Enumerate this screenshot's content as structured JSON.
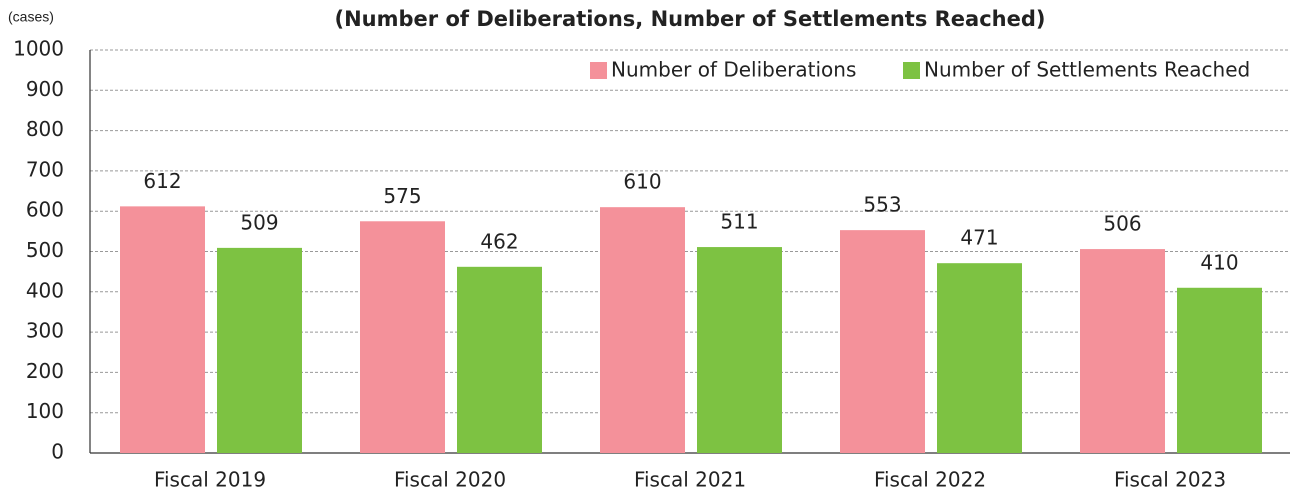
{
  "chart_data": {
    "type": "bar",
    "title": "(Number of Deliberations, Number of Settlements Reached)",
    "y_label": "(cases)",
    "categories": [
      "Fiscal 2019",
      "Fiscal 2020",
      "Fiscal 2021",
      "Fiscal 2022",
      "Fiscal 2023"
    ],
    "series": [
      {
        "name": "Number of Deliberations",
        "color": "#f4919a",
        "values": [
          612,
          575,
          610,
          553,
          506
        ]
      },
      {
        "name": "Number of Settlements Reached",
        "color": "#7dc242",
        "values": [
          509,
          462,
          511,
          471,
          410
        ]
      }
    ],
    "ylim": [
      0,
      1000
    ],
    "yticks": [
      0,
      100,
      200,
      300,
      400,
      500,
      600,
      700,
      800,
      900,
      1000
    ],
    "grid": true,
    "legend": "top-right"
  }
}
